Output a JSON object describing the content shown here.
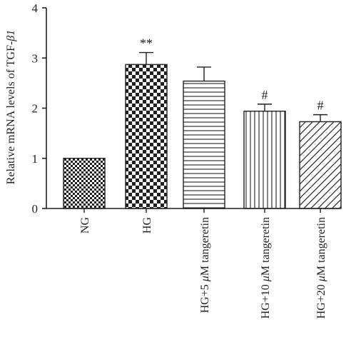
{
  "chart_data": {
    "type": "bar",
    "ylabel_prefix": "Relative mRNA levels of TGF-",
    "ylabel_symbol": "β1",
    "ylim": [
      0,
      4
    ],
    "yticks": [
      "0",
      "1",
      "2",
      "3",
      "4"
    ],
    "grid": false,
    "categories": [
      {
        "parts": [
          {
            "t": "NG",
            "i": false
          }
        ]
      },
      {
        "parts": [
          {
            "t": "HG",
            "i": false
          }
        ]
      },
      {
        "parts": [
          {
            "t": "HG+5 ",
            "i": false
          },
          {
            "t": "μ",
            "i": true
          },
          {
            "t": "M tangeretin",
            "i": false
          }
        ]
      },
      {
        "parts": [
          {
            "t": "HG+10 ",
            "i": false
          },
          {
            "t": "μ",
            "i": true
          },
          {
            "t": "M tangeretin",
            "i": false
          }
        ]
      },
      {
        "parts": [
          {
            "t": "HG+20 ",
            "i": false
          },
          {
            "t": "μ",
            "i": true
          },
          {
            "t": "M tangeretin",
            "i": false
          }
        ]
      }
    ],
    "values": [
      1.0,
      2.87,
      2.54,
      1.94,
      1.73
    ],
    "errors": [
      0,
      0.24,
      0.28,
      0.14,
      0.14
    ],
    "annotations": [
      "",
      "**",
      "",
      "#",
      "#"
    ],
    "patterns": [
      "fine-checker",
      "checker",
      "horizontal-lines",
      "vertical-lines",
      "diagonal-lines"
    ],
    "colors": {
      "ink": "#231f20",
      "background": "#ffffff"
    }
  }
}
